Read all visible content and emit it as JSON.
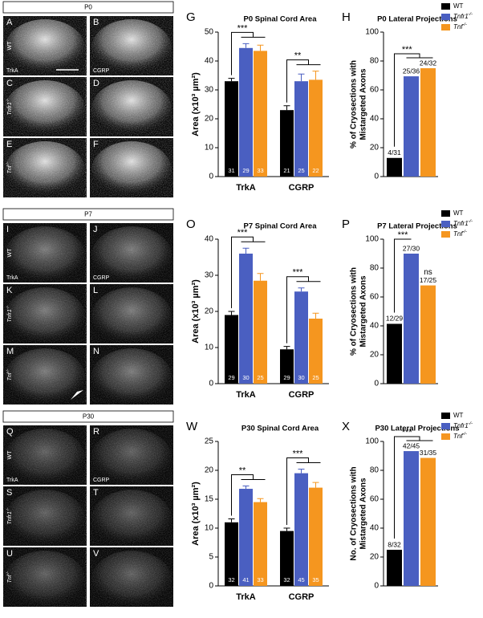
{
  "panels": [
    {
      "stage": "P0",
      "images": [
        [
          "A",
          "B"
        ],
        [
          "C",
          "D"
        ],
        [
          "E",
          "F"
        ]
      ],
      "genotypes": [
        "WT",
        "Tnfr1-/-",
        "Tnf-/-"
      ],
      "markers": [
        "TrkA",
        "CGRP"
      ]
    },
    {
      "stage": "P7",
      "images": [
        [
          "I",
          "J"
        ],
        [
          "K",
          "L"
        ],
        [
          "M",
          "N"
        ]
      ],
      "genotypes": [
        "WT",
        "Tnfr1-/-",
        "Tnf-/-"
      ],
      "markers": [
        "TrkA",
        "CGRP"
      ]
    },
    {
      "stage": "P30",
      "images": [
        [
          "Q",
          "R"
        ],
        [
          "S",
          "T"
        ],
        [
          "U",
          "V"
        ]
      ],
      "genotypes": [
        "WT",
        "Tnfr1-/-",
        "Tnf-/-"
      ],
      "markers": [
        "TrkA",
        "CGRP"
      ]
    }
  ],
  "chart_data": [
    {
      "type": "grouped_bar",
      "panel": "G",
      "title": "P0 Spinal Cord Area",
      "ylabel": "Area (x10³ µm²)",
      "categories": [
        "TrkA",
        "CGRP"
      ],
      "series": [
        {
          "color": "#000000",
          "values": [
            33,
            23
          ],
          "errors": [
            1,
            1.5
          ],
          "n": [
            31,
            21
          ]
        },
        {
          "color": "#4a5fc1",
          "values": [
            44.5,
            33
          ],
          "errors": [
            1.5,
            2.5
          ],
          "n": [
            29,
            25
          ]
        },
        {
          "color": "#f5961f",
          "values": [
            43.5,
            33.5
          ],
          "errors": [
            2,
            3
          ],
          "n": [
            33,
            22
          ]
        }
      ],
      "ylim": [
        0,
        50
      ],
      "yticks": [
        0,
        10,
        20,
        30,
        40,
        50
      ],
      "significance": [
        {
          "category": 0,
          "label": "***"
        },
        {
          "category": 1,
          "label": "**"
        }
      ]
    },
    {
      "type": "bar",
      "panel": "H",
      "title": "P0 Lateral Projections",
      "ylabel": [
        "% of Cryosections with",
        "Mistargeted Axons"
      ],
      "categories": [
        "WT",
        "Tnfr1-/-",
        "Tnf-/-"
      ],
      "colors": [
        "#000000",
        "#4a5fc1",
        "#f5961f"
      ],
      "values": [
        12.9,
        69.4,
        75
      ],
      "value_labels": [
        "4/31",
        "25/36",
        "24/32"
      ],
      "ylim": [
        0,
        100
      ],
      "yticks": [
        0,
        20,
        40,
        60,
        80,
        100
      ],
      "legend": "upper right",
      "significance": [
        {
          "from": 0,
          "to": [
            1,
            2
          ],
          "label": "***",
          "bracket": true
        }
      ]
    },
    {
      "type": "grouped_bar",
      "panel": "O",
      "title": "P7 Spinal Cord Area",
      "ylabel": "Area (x10³ µm²)",
      "categories": [
        "TrkA",
        "CGRP"
      ],
      "series": [
        {
          "color": "#000000",
          "values": [
            19,
            9.5
          ],
          "errors": [
            1,
            0.8
          ],
          "n": [
            29,
            29
          ]
        },
        {
          "color": "#4a5fc1",
          "values": [
            36,
            25.5
          ],
          "errors": [
            1.5,
            1
          ],
          "n": [
            30,
            30
          ]
        },
        {
          "color": "#f5961f",
          "values": [
            28.5,
            18
          ],
          "errors": [
            2,
            1.5
          ],
          "n": [
            25,
            25
          ]
        }
      ],
      "ylim": [
        0,
        40
      ],
      "yticks": [
        0,
        10,
        20,
        30,
        40
      ],
      "significance": [
        {
          "category": 0,
          "label": "***"
        },
        {
          "category": 1,
          "label": "***"
        }
      ]
    },
    {
      "type": "bar",
      "panel": "P",
      "title": "P7 Lateral Projections",
      "ylabel": [
        "% of Cryosections with",
        "Mistargeted Axons"
      ],
      "categories": [
        "WT",
        "Tnfr1-/-",
        "Tnf-/-"
      ],
      "colors": [
        "#000000",
        "#4a5fc1",
        "#f5961f"
      ],
      "values": [
        41.4,
        90,
        68
      ],
      "value_labels": [
        "12/29",
        "27/30",
        "17/25"
      ],
      "ylim": [
        0,
        100
      ],
      "yticks": [
        0,
        20,
        40,
        60,
        80,
        100
      ],
      "legend": "upper right",
      "significance": [
        {
          "from": 0,
          "to": [
            1
          ],
          "label": "***",
          "bracket": true
        },
        {
          "from": 0,
          "to": [
            2
          ],
          "label": "ns",
          "bracket": false
        }
      ]
    },
    {
      "type": "grouped_bar",
      "panel": "W",
      "title": "P30 Spinal Cord Area",
      "ylabel": "Area (x10³ µm²)",
      "categories": [
        "TrkA",
        "CGRP"
      ],
      "series": [
        {
          "color": "#000000",
          "values": [
            11,
            9.5
          ],
          "errors": [
            0.6,
            0.5
          ],
          "n": [
            32,
            32
          ]
        },
        {
          "color": "#4a5fc1",
          "values": [
            16.8,
            19.5
          ],
          "errors": [
            0.5,
            0.7
          ],
          "n": [
            41,
            45
          ]
        },
        {
          "color": "#f5961f",
          "values": [
            14.5,
            17
          ],
          "errors": [
            0.6,
            0.9
          ],
          "n": [
            33,
            35
          ]
        }
      ],
      "ylim": [
        0,
        25
      ],
      "yticks": [
        0,
        5,
        10,
        15,
        20,
        25
      ],
      "significance": [
        {
          "category": 0,
          "label": "**"
        },
        {
          "category": 1,
          "label": "***"
        }
      ]
    },
    {
      "type": "bar",
      "panel": "X",
      "title": "P30 Lateral Projections",
      "ylabel": [
        "No. of Cryosections with",
        "Mistargeted Axons"
      ],
      "categories": [
        "WT",
        "Tnfr1-/-",
        "Tnf-/-"
      ],
      "colors": [
        "#000000",
        "#4a5fc1",
        "#f5961f"
      ],
      "values": [
        25,
        93.3,
        88.6
      ],
      "value_labels": [
        "8/32",
        "42/45",
        "31/35"
      ],
      "ylim": [
        0,
        100
      ],
      "yticks": [
        0,
        20,
        40,
        60,
        80,
        100
      ],
      "legend": "upper right",
      "significance": [
        {
          "from": 0,
          "to": [
            1,
            2
          ],
          "label": "***",
          "bracket": true
        }
      ]
    }
  ]
}
